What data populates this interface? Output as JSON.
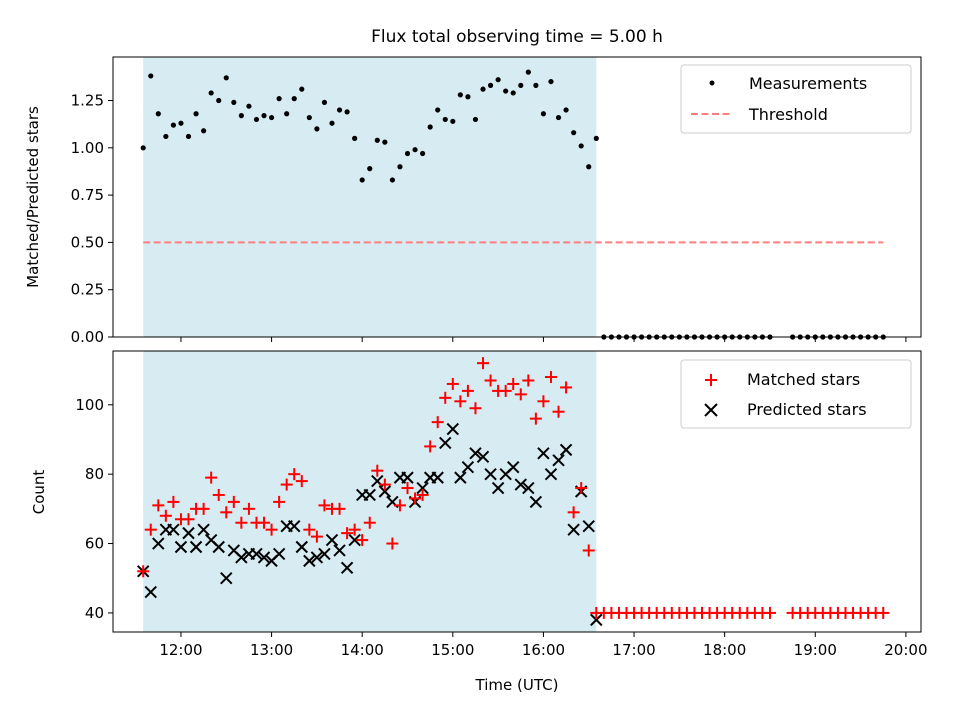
{
  "figure": {
    "title": "Flux total observing time = 5.00 h"
  },
  "chart_data": [
    {
      "type": "scatter",
      "panel": "top",
      "ylabel": "Matched/Predicted stars",
      "xlabel": "",
      "xlim": [
        "11:15",
        "20:10"
      ],
      "ylim": [
        0,
        1.48
      ],
      "yticks": [
        0.0,
        0.25,
        0.5,
        0.75,
        1.0,
        1.25
      ],
      "ytick_labels": [
        "0.00",
        "0.25",
        "0.50",
        "0.75",
        "1.00",
        "1.25"
      ],
      "xticks": [
        "12:00",
        "13:00",
        "14:00",
        "15:00",
        "16:00",
        "17:00",
        "18:00",
        "19:00",
        "20:00"
      ],
      "shaded_interval": {
        "start": "11:35",
        "end": "16:35",
        "color": "#add8e6"
      },
      "legend_position": "upper right",
      "series": [
        {
          "name": "Measurements",
          "marker": "dot",
          "color": "#000000",
          "x": [
            "11:35",
            "11:40",
            "11:45",
            "11:50",
            "11:55",
            "12:00",
            "12:05",
            "12:10",
            "12:15",
            "12:20",
            "12:25",
            "12:30",
            "12:35",
            "12:40",
            "12:45",
            "12:50",
            "12:55",
            "13:00",
            "13:05",
            "13:10",
            "13:15",
            "13:20",
            "13:25",
            "13:30",
            "13:35",
            "13:40",
            "13:45",
            "13:50",
            "13:55",
            "14:00",
            "14:05",
            "14:10",
            "14:15",
            "14:20",
            "14:25",
            "14:30",
            "14:35",
            "14:40",
            "14:45",
            "14:50",
            "14:55",
            "15:00",
            "15:05",
            "15:10",
            "15:15",
            "15:20",
            "15:25",
            "15:30",
            "15:35",
            "15:40",
            "15:45",
            "15:50",
            "15:55",
            "16:00",
            "16:05",
            "16:10",
            "16:15",
            "16:20",
            "16:25",
            "16:30",
            "16:35",
            "16:40",
            "16:45",
            "16:50",
            "16:55",
            "17:00",
            "17:05",
            "17:10",
            "17:15",
            "17:20",
            "17:25",
            "17:30",
            "17:35",
            "17:40",
            "17:45",
            "17:50",
            "17:55",
            "18:00",
            "18:05",
            "18:10",
            "18:15",
            "18:20",
            "18:25",
            "18:30",
            "18:45",
            "18:50",
            "18:55",
            "19:00",
            "19:05",
            "19:10",
            "19:15",
            "19:20",
            "19:25",
            "19:30",
            "19:35",
            "19:40",
            "19:45"
          ],
          "y": [
            1.0,
            1.38,
            1.18,
            1.06,
            1.12,
            1.13,
            1.06,
            1.18,
            1.09,
            1.29,
            1.25,
            1.37,
            1.24,
            1.17,
            1.22,
            1.15,
            1.17,
            1.16,
            1.26,
            1.18,
            1.26,
            1.31,
            1.16,
            1.1,
            1.24,
            1.13,
            1.2,
            1.19,
            1.05,
            0.83,
            0.89,
            1.04,
            1.03,
            0.83,
            0.9,
            0.97,
            0.99,
            0.97,
            1.11,
            1.2,
            1.15,
            1.14,
            1.28,
            1.27,
            1.15,
            1.31,
            1.33,
            1.36,
            1.3,
            1.29,
            1.33,
            1.4,
            1.33,
            1.18,
            1.35,
            1.16,
            1.2,
            1.08,
            1.01,
            0.9,
            1.05,
            0,
            0,
            0,
            0,
            0,
            0,
            0,
            0,
            0,
            0,
            0,
            0,
            0,
            0,
            0,
            0,
            0,
            0,
            0,
            0,
            0,
            0,
            0,
            0,
            0,
            0,
            0,
            0,
            0,
            0,
            0,
            0,
            0,
            0,
            0,
            0
          ]
        },
        {
          "name": "Threshold",
          "marker": "dashed-line",
          "color": "#ff7f7f",
          "x": [
            "11:35",
            "19:45"
          ],
          "y": [
            0.5,
            0.5
          ]
        }
      ]
    },
    {
      "type": "scatter",
      "panel": "bottom",
      "ylabel": "Count",
      "xlabel": "Time (UTC)",
      "xlim": [
        "11:15",
        "20:10"
      ],
      "ylim": [
        34.5,
        115.5
      ],
      "yticks": [
        40,
        60,
        80,
        100
      ],
      "ytick_labels": [
        "40",
        "60",
        "80",
        "100"
      ],
      "xticks": [
        "12:00",
        "13:00",
        "14:00",
        "15:00",
        "16:00",
        "17:00",
        "18:00",
        "19:00",
        "20:00"
      ],
      "xtick_labels": [
        "12:00",
        "13:00",
        "14:00",
        "15:00",
        "16:00",
        "17:00",
        "18:00",
        "19:00",
        "20:00"
      ],
      "shaded_interval": {
        "start": "11:35",
        "end": "16:35",
        "color": "#add8e6"
      },
      "legend_position": "upper right",
      "series": [
        {
          "name": "Matched stars",
          "marker": "plus",
          "color": "#ff0000",
          "x": [
            "11:35",
            "11:40",
            "11:45",
            "11:50",
            "11:55",
            "12:00",
            "12:05",
            "12:10",
            "12:15",
            "12:20",
            "12:25",
            "12:30",
            "12:35",
            "12:40",
            "12:45",
            "12:50",
            "12:55",
            "13:00",
            "13:05",
            "13:10",
            "13:15",
            "13:20",
            "13:25",
            "13:30",
            "13:35",
            "13:40",
            "13:45",
            "13:50",
            "13:55",
            "14:00",
            "14:05",
            "14:10",
            "14:15",
            "14:20",
            "14:25",
            "14:30",
            "14:35",
            "14:40",
            "14:45",
            "14:50",
            "14:55",
            "15:00",
            "15:05",
            "15:10",
            "15:15",
            "15:20",
            "15:25",
            "15:30",
            "15:35",
            "15:40",
            "15:45",
            "15:50",
            "15:55",
            "16:00",
            "16:05",
            "16:10",
            "16:15",
            "16:20",
            "16:25",
            "16:30",
            "16:35",
            "16:40",
            "16:45",
            "16:50",
            "16:55",
            "17:00",
            "17:05",
            "17:10",
            "17:15",
            "17:20",
            "17:25",
            "17:30",
            "17:35",
            "17:40",
            "17:45",
            "17:50",
            "17:55",
            "18:00",
            "18:05",
            "18:10",
            "18:15",
            "18:20",
            "18:25",
            "18:30",
            "18:45",
            "18:50",
            "18:55",
            "19:00",
            "19:05",
            "19:10",
            "19:15",
            "19:20",
            "19:25",
            "19:30",
            "19:35",
            "19:40",
            "19:45"
          ],
          "y": [
            52,
            64,
            71,
            68,
            72,
            67,
            67,
            70,
            70,
            79,
            74,
            69,
            72,
            66,
            70,
            66,
            66,
            64,
            72,
            77,
            80,
            78,
            64,
            62,
            71,
            70,
            70,
            63,
            64,
            61,
            66,
            81,
            77,
            60,
            71,
            76,
            73,
            74,
            88,
            95,
            102,
            106,
            101,
            104,
            99,
            112,
            107,
            104,
            104,
            106,
            103,
            107,
            96,
            101,
            108,
            98,
            105,
            69,
            76,
            58,
            40,
            40,
            40,
            40,
            40,
            40,
            40,
            40,
            40,
            40,
            40,
            40,
            40,
            40,
            40,
            40,
            40,
            40,
            40,
            40,
            40,
            40,
            40,
            40,
            40,
            40,
            40,
            40,
            40,
            40,
            40,
            40,
            40,
            40,
            40,
            40,
            40
          ]
        },
        {
          "name": "Predicted stars",
          "marker": "x",
          "color": "#000000",
          "x": [
            "11:35",
            "11:40",
            "11:45",
            "11:50",
            "11:55",
            "12:00",
            "12:05",
            "12:10",
            "12:15",
            "12:20",
            "12:25",
            "12:30",
            "12:35",
            "12:40",
            "12:45",
            "12:50",
            "12:55",
            "13:00",
            "13:05",
            "13:10",
            "13:15",
            "13:20",
            "13:25",
            "13:30",
            "13:35",
            "13:40",
            "13:45",
            "13:50",
            "13:55",
            "14:00",
            "14:05",
            "14:10",
            "14:15",
            "14:20",
            "14:25",
            "14:30",
            "14:35",
            "14:40",
            "14:45",
            "14:50",
            "14:55",
            "15:00",
            "15:05",
            "15:10",
            "15:15",
            "15:20",
            "15:25",
            "15:30",
            "15:35",
            "15:40",
            "15:45",
            "15:50",
            "15:55",
            "16:00",
            "16:05",
            "16:10",
            "16:15",
            "16:20",
            "16:25",
            "16:30",
            "16:35"
          ],
          "y": [
            52,
            46,
            60,
            64,
            64,
            59,
            63,
            59,
            64,
            61,
            59,
            50,
            58,
            56,
            57,
            57,
            56,
            55,
            57,
            65,
            65,
            59,
            55,
            56,
            57,
            61,
            58,
            53,
            61,
            74,
            74,
            78,
            75,
            72,
            79,
            79,
            72,
            76,
            79,
            79,
            89,
            93,
            79,
            82,
            86,
            85,
            80,
            76,
            80,
            82,
            77,
            76,
            72,
            86,
            80,
            84,
            87,
            64,
            75,
            65,
            38
          ]
        }
      ]
    }
  ]
}
